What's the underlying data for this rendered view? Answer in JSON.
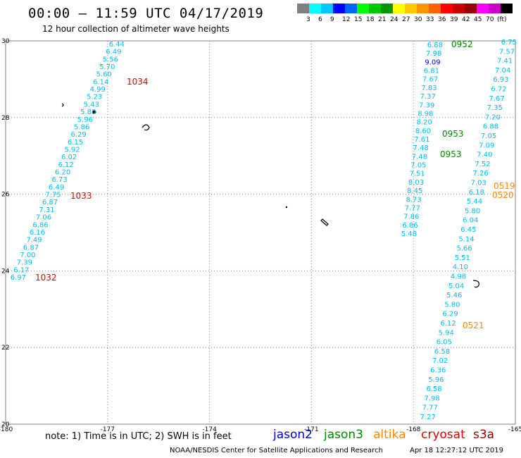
{
  "header": {
    "title": "00:00 — 11:59 UTC 04/17/2019",
    "subtitle": "12 hour collection of altimeter wave heights"
  },
  "scale": {
    "colors": [
      "#808080",
      "#00ffff",
      "#00c8ff",
      "#0000ff",
      "#0064ff",
      "#00ff00",
      "#00c800",
      "#009600",
      "#ffff00",
      "#ffc800",
      "#ff9600",
      "#ff6400",
      "#ff0000",
      "#c80000",
      "#960000",
      "#ff00ff",
      "#c800c8",
      "#000000"
    ],
    "labels": [
      "3",
      "6",
      "9",
      "12",
      "15",
      "18",
      "21",
      "24",
      "27",
      "30",
      "33",
      "36",
      "39",
      "42",
      "45",
      "70"
    ],
    "unit": "(ft)"
  },
  "map": {
    "lon_ticks": [
      "-180",
      "-177",
      "-174",
      "-171",
      "-168",
      "-165"
    ],
    "lat_ticks": [
      "30",
      "28",
      "26",
      "24",
      "22",
      "20"
    ],
    "colors": {
      "jason2": "#0000cc",
      "jason3": "#008800",
      "altika": "#ff8800",
      "cryosat": "#dd0000",
      "s3a": "#990000",
      "swh": "#00bbee",
      "grid": "#808080"
    },
    "tracks": [
      {
        "satellite": "cryosat",
        "swh": [
          "6.44",
          "6.49",
          "5.56",
          "5.70",
          "5.60",
          "6.14",
          "4.99",
          "5.23",
          "5.43",
          "5.80",
          "5.96",
          "5.86",
          "6.29",
          "6.15",
          "5.92",
          "6.02",
          "6.12",
          "6.20",
          "6.73",
          "6.49",
          "7.75",
          "6.87",
          "7.31",
          "7.06",
          "6.86",
          "6.16",
          "7.49",
          "6.87",
          "7.00",
          "7.39",
          "6.17",
          "6.97"
        ],
        "time_labels": [
          {
            "text": "1034",
            "index": 5
          },
          {
            "text": "1033",
            "index": 20
          },
          {
            "text": "1032",
            "index": 31
          }
        ]
      },
      {
        "satellite": "jason3",
        "swh": [
          "6.88",
          "7.98",
          "9.09",
          "6.81",
          "7.67",
          "7.83",
          "7.37",
          "7.39",
          "8.98",
          "8.20",
          "8.60",
          "7.61",
          "7.48",
          "7.48",
          "7.05",
          "7.51",
          "8.03",
          "8.45",
          "8.73",
          "7.77",
          "7.86",
          "6.86",
          "5.48"
        ],
        "time_labels": [
          {
            "text": "0952",
            "index": 0
          },
          {
            "text": "0953",
            "index": 10
          },
          {
            "text": "0953",
            "index": 13
          }
        ]
      },
      {
        "satellite": "altika",
        "swh": [
          "6.75",
          "7.57",
          "7.41",
          "7.04",
          "6.93",
          "6.72",
          "7.67",
          "7.35",
          "7.20",
          "6.88",
          "7.05",
          "7.09",
          "7.40",
          "7.52",
          "7.26",
          "7.03",
          "6.18",
          "5.44",
          "5.80",
          "6.04",
          "6.45",
          "5.14",
          "5.66",
          "5.51",
          "4.10",
          "4.98",
          "5.04",
          "5.46",
          "5.80",
          "6.29",
          "6.12",
          "5.94",
          "6.05",
          "6.58",
          "7.02",
          "6.36",
          "5.96",
          "6.58",
          "7.98",
          "7.77",
          "7.27"
        ],
        "time_labels": [
          {
            "text": "0519",
            "index": 15
          },
          {
            "text": "0520",
            "index": 16
          },
          {
            "text": "0521",
            "index": 30
          }
        ]
      }
    ]
  },
  "footer": {
    "note": "note:  1) Time is in UTC;  2) SWH is in feet",
    "satellites": [
      {
        "name": "jason2",
        "color": "#0000cc"
      },
      {
        "name": "jason3",
        "color": "#008800"
      },
      {
        "name": "altika",
        "color": "#ff8800"
      },
      {
        "name": "cryosat",
        "color": "#dd0000"
      },
      {
        "name": "s3a",
        "color": "#990000"
      }
    ],
    "credit": "NOAA/NESDIS Center for Satellite Applications and Research",
    "created": "Apr 18 12:27:12 UTC 2019"
  }
}
